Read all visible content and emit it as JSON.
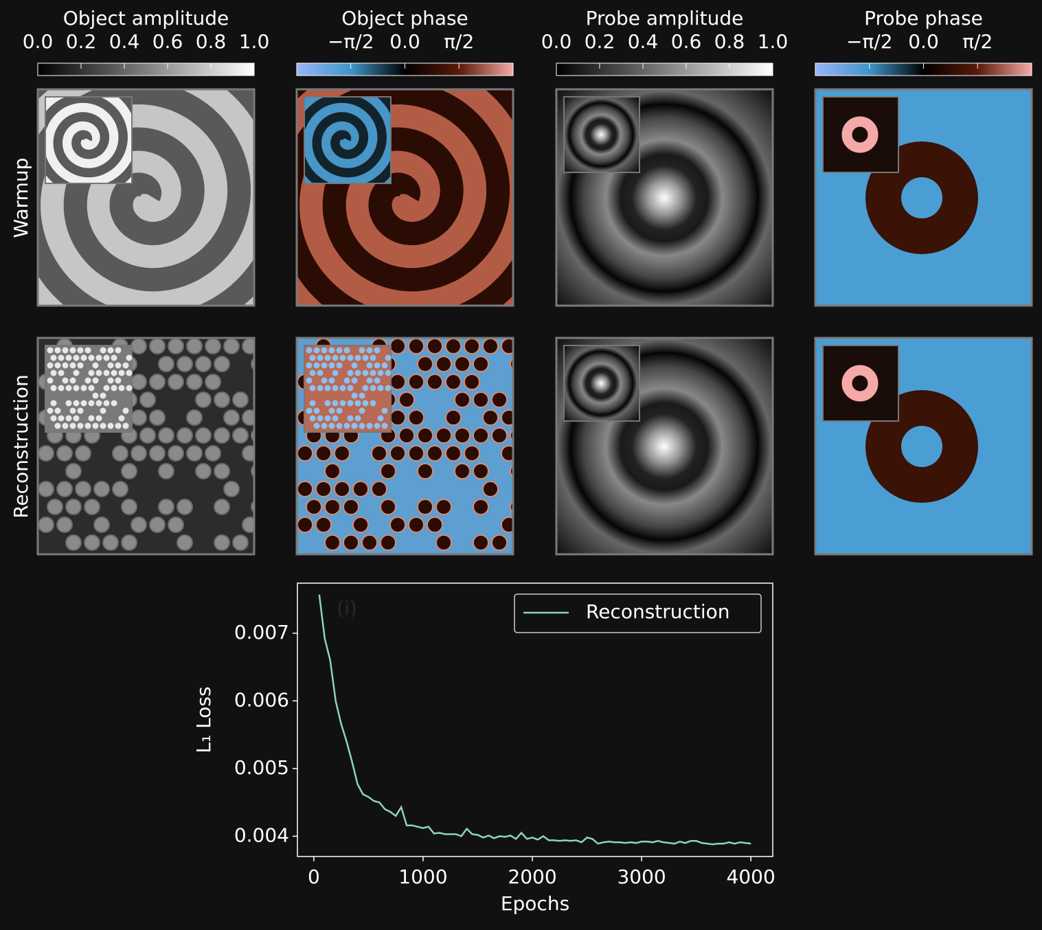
{
  "colorbars": [
    {
      "title": "Object amplitude",
      "lim": [
        0,
        1
      ],
      "colors": [
        "#000000",
        "#ffffff"
      ],
      "ticks": [
        {
          "value": 0,
          "label": "0.0"
        },
        {
          "value": 0.2,
          "label": "0.2"
        },
        {
          "value": 0.4,
          "label": "0.4"
        },
        {
          "value": 0.6,
          "label": "0.6"
        },
        {
          "value": 0.8,
          "label": "0.8"
        },
        {
          "value": 1,
          "label": "1.0"
        }
      ]
    },
    {
      "title": "Object phase",
      "lim": [
        -3.1416,
        3.1416
      ],
      "colors": [
        "#9ab4f8",
        "#3f96c8",
        "#000000",
        "#5a1a08",
        "#f4aaa6"
      ],
      "ticks": [
        {
          "value": -1.5708,
          "label": "−π/2"
        },
        {
          "value": 0,
          "label": "0.0"
        },
        {
          "value": 1.5708,
          "label": "π/2"
        }
      ]
    },
    {
      "title": "Probe amplitude",
      "lim": [
        0,
        1
      ],
      "colors": [
        "#000000",
        "#ffffff"
      ],
      "ticks": [
        {
          "value": 0,
          "label": "0.0"
        },
        {
          "value": 0.2,
          "label": "0.2"
        },
        {
          "value": 0.4,
          "label": "0.4"
        },
        {
          "value": 0.6,
          "label": "0.6"
        },
        {
          "value": 0.8,
          "label": "0.8"
        },
        {
          "value": 1,
          "label": "1.0"
        }
      ]
    },
    {
      "title": "Probe phase",
      "lim": [
        -3.1416,
        3.1416
      ],
      "colors": [
        "#9ab4f8",
        "#3f96c8",
        "#000000",
        "#5a1a08",
        "#f4aaa6"
      ],
      "ticks": [
        {
          "value": -1.5708,
          "label": "−π/2"
        },
        {
          "value": 0,
          "label": "0.0"
        },
        {
          "value": 1.5708,
          "label": "π/2"
        }
      ]
    }
  ],
  "row_labels": [
    "Warmup",
    "Reconstruction"
  ],
  "chart_data": {
    "type": "line",
    "annotation": "(i)",
    "x_label": "Epochs",
    "y_label": "L₁ Loss",
    "xlim": [
      -150,
      4200
    ],
    "ylim": [
      0.0037,
      0.00774
    ],
    "xticks": [
      0,
      1000,
      2000,
      3000,
      4000
    ],
    "yticks": [
      0.004,
      0.005,
      0.006,
      0.007
    ],
    "legend": "upper right",
    "x": [
      50,
      100,
      150,
      200,
      250,
      300,
      350,
      400,
      450,
      500,
      550,
      600,
      650,
      700,
      750,
      800,
      850,
      900,
      950,
      1000,
      1050,
      1100,
      1150,
      1200,
      1250,
      1300,
      1350,
      1400,
      1450,
      1500,
      1550,
      1600,
      1650,
      1700,
      1750,
      1800,
      1850,
      1900,
      1950,
      2000,
      2050,
      2100,
      2150,
      2200,
      2250,
      2300,
      2350,
      2400,
      2450,
      2500,
      2550,
      2600,
      2650,
      2700,
      2750,
      2800,
      2850,
      2900,
      2950,
      3000,
      3050,
      3100,
      3150,
      3200,
      3250,
      3300,
      3350,
      3400,
      3450,
      3500,
      3550,
      3600,
      3650,
      3700,
      3750,
      3800,
      3850,
      3900,
      3950,
      4000
    ],
    "series": [
      {
        "name": "Reconstruction",
        "color": "#8dd3c7",
        "values": [
          0.00757,
          0.00692,
          0.0066,
          0.006,
          0.00566,
          0.0054,
          0.0051,
          0.00477,
          0.00462,
          0.00458,
          0.00452,
          0.0045,
          0.0044,
          0.00436,
          0.0043,
          0.00443,
          0.00416,
          0.00416,
          0.00414,
          0.00412,
          0.00414,
          0.00404,
          0.00405,
          0.00403,
          0.00403,
          0.00403,
          0.004,
          0.00411,
          0.00403,
          0.00402,
          0.00398,
          0.00401,
          0.00397,
          0.004,
          0.00399,
          0.00401,
          0.00396,
          0.00405,
          0.00396,
          0.00398,
          0.00395,
          0.004,
          0.00394,
          0.00394,
          0.00393,
          0.00394,
          0.00393,
          0.00394,
          0.00391,
          0.00398,
          0.00396,
          0.00389,
          0.00391,
          0.00392,
          0.00391,
          0.00391,
          0.0039,
          0.00391,
          0.0039,
          0.00392,
          0.00392,
          0.00391,
          0.00393,
          0.00391,
          0.0039,
          0.00389,
          0.00392,
          0.0039,
          0.00393,
          0.00393,
          0.0039,
          0.00389,
          0.00388,
          0.00389,
          0.00389,
          0.00391,
          0.00389,
          0.00391,
          0.0039,
          0.00389
        ]
      }
    ]
  }
}
